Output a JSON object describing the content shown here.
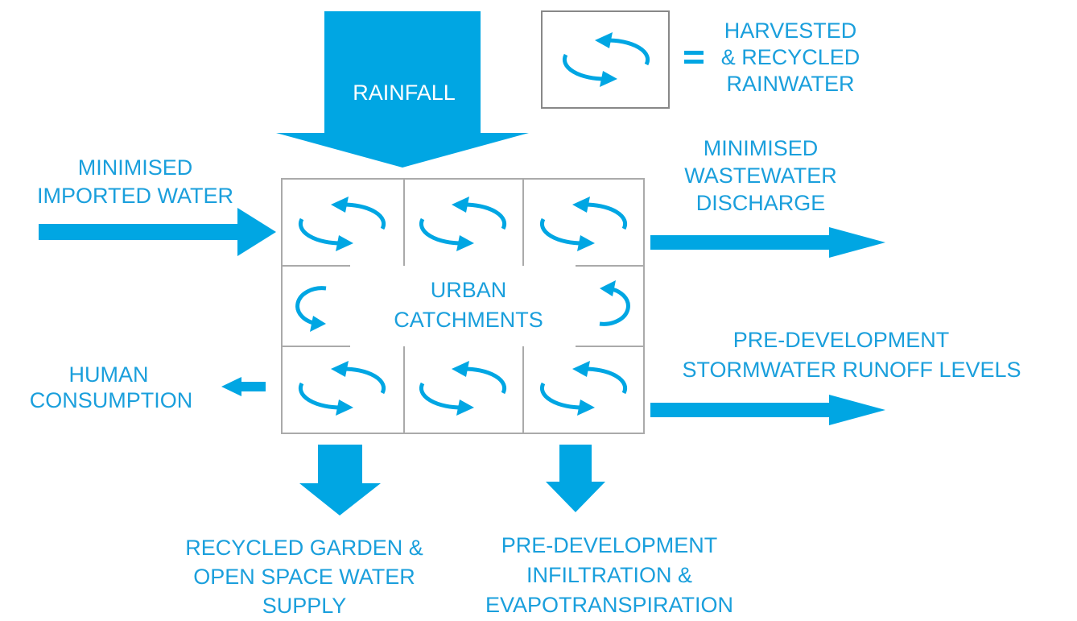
{
  "rainfall": "RAINFALL",
  "legend": {
    "lines": [
      "HARVESTED",
      "& RECYCLED",
      "RAINWATER"
    ]
  },
  "center": {
    "lines": [
      "URBAN",
      "CATCHMENTS"
    ]
  },
  "imported": {
    "lines": [
      "MINIMISED",
      "IMPORTED WATER"
    ]
  },
  "wastewater": {
    "lines": [
      "MINIMISED",
      "WASTEWATER",
      "DISCHARGE"
    ]
  },
  "stormwater": {
    "lines": [
      "PRE-DEVELOPMENT",
      "STORMWATER RUNOFF LEVELS"
    ]
  },
  "human": {
    "lines": [
      "HUMAN",
      "CONSUMPTION"
    ]
  },
  "garden": {
    "lines": [
      "RECYCLED GARDEN &",
      "OPEN SPACE WATER",
      "SUPPLY"
    ]
  },
  "infiltration": {
    "lines": [
      "PRE-DEVELOPMENT",
      "INFILTRATION &",
      "EVAPOTRANSPIRATION"
    ]
  }
}
